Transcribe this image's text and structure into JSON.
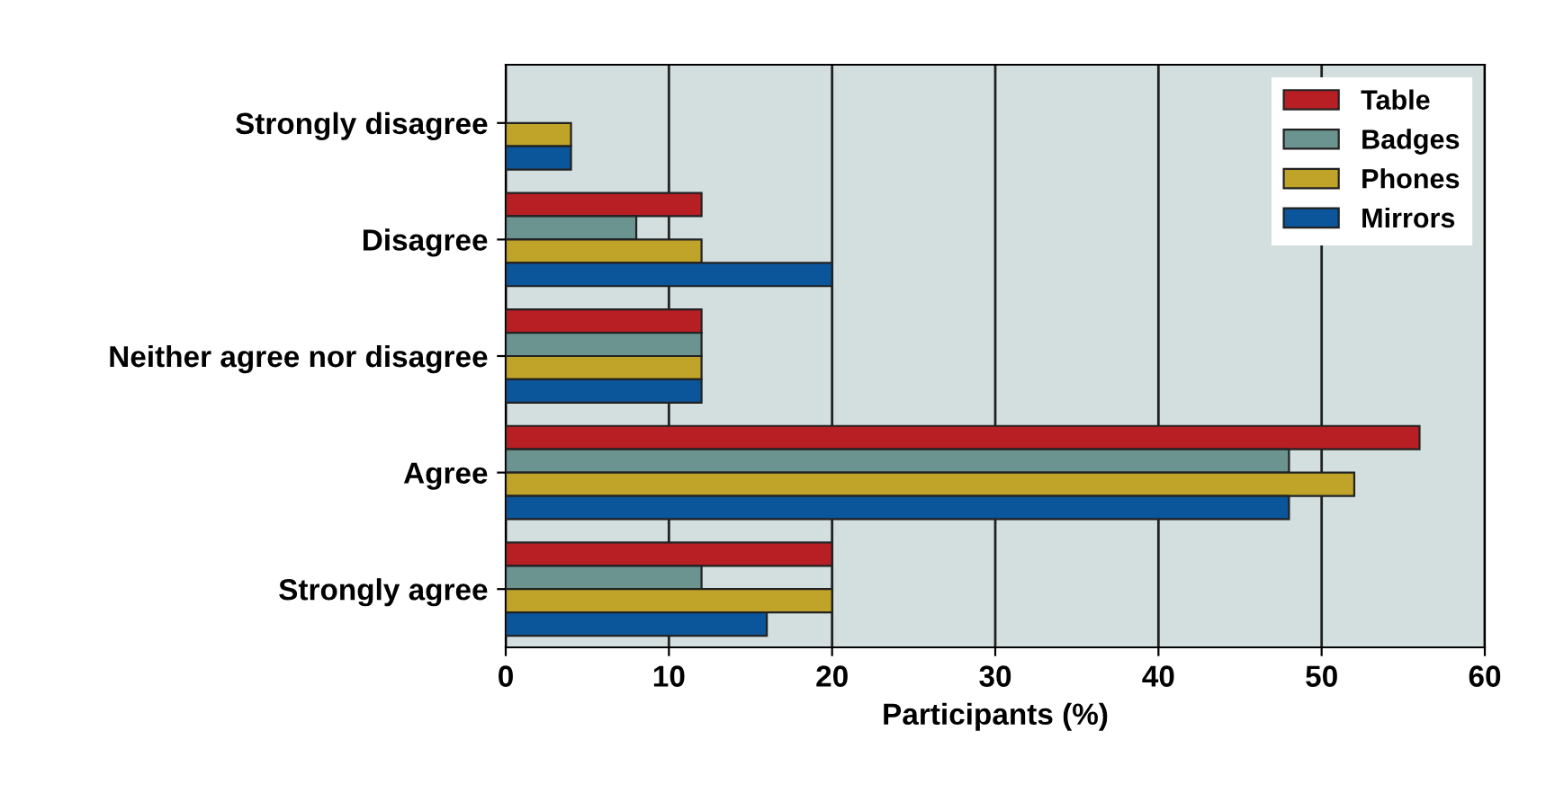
{
  "chart_data": {
    "type": "bar",
    "orientation": "horizontal",
    "xlabel": "Participants (%)",
    "categories": [
      "Strongly disagree",
      "Disagree",
      "Neither agree nor disagree",
      "Agree",
      "Strongly agree"
    ],
    "series": [
      {
        "name": "Table",
        "color": "#b71f25",
        "values": [
          0,
          12,
          12,
          56,
          20
        ]
      },
      {
        "name": "Badges",
        "color": "#6b938f",
        "values": [
          0,
          8,
          12,
          48,
          12
        ]
      },
      {
        "name": "Phones",
        "color": "#c0a42a",
        "values": [
          4,
          12,
          12,
          52,
          20
        ]
      },
      {
        "name": "Mirrors",
        "color": "#0b559a",
        "values": [
          4,
          20,
          12,
          48,
          16
        ]
      }
    ],
    "xlim": [
      0,
      60
    ],
    "xticks": [
      0,
      10,
      20,
      30,
      40,
      50,
      60
    ],
    "grid": "x",
    "legend": "top right"
  }
}
